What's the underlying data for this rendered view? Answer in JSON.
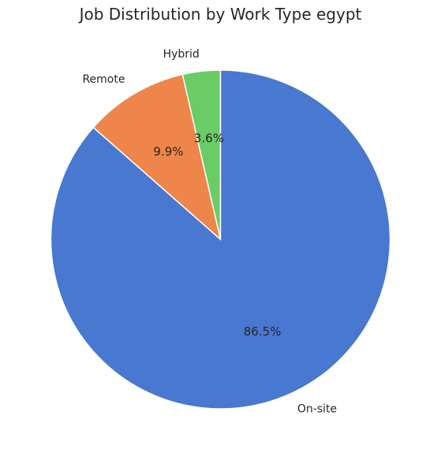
{
  "chart_data": {
    "type": "pie",
    "title": "Job Distribution by Work Type egypt",
    "categories": [
      "Hybrid",
      "Remote",
      "On-site"
    ],
    "values": [
      3.6,
      9.9,
      86.5
    ],
    "percent_labels": [
      "3.6%",
      "9.9%",
      "86.5%"
    ],
    "colors": [
      "#6acc64",
      "#ee854a",
      "#4878d0"
    ],
    "start_angle_deg": 90,
    "direction": "counterclockwise"
  }
}
